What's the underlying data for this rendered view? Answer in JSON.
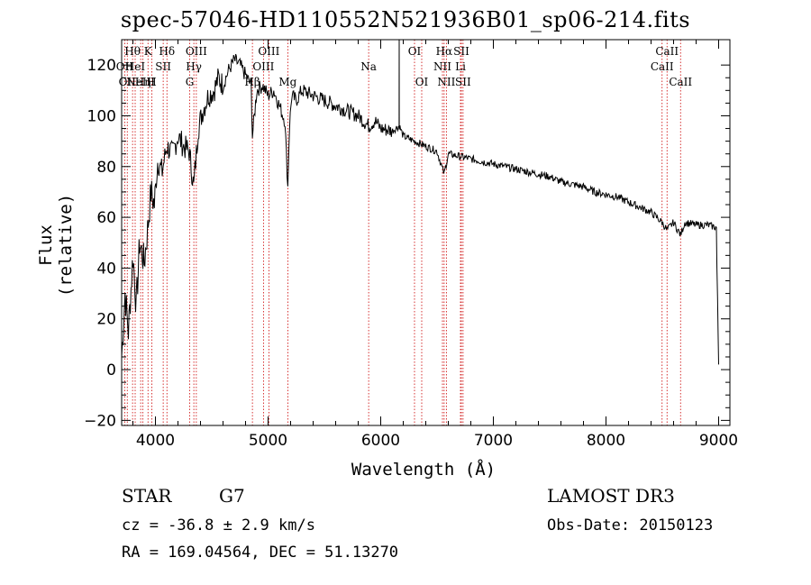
{
  "chart_data": {
    "type": "line",
    "title": "spec-57046-HD110552N521936B01_sp06-214.fits",
    "xlabel": "Wavelength (Å)",
    "ylabel": "Flux (relative)",
    "xlim": [
      3700,
      9100
    ],
    "ylim": [
      -22,
      130
    ],
    "x_ticks": [
      4000,
      5000,
      6000,
      7000,
      8000,
      9000
    ],
    "y_ticks": [
      -20,
      0,
      20,
      40,
      60,
      80,
      100,
      120
    ],
    "series": [
      {
        "name": "flux",
        "x": [
          3700,
          3730,
          3760,
          3800,
          3830,
          3860,
          3900,
          3930,
          3960,
          3990,
          4020,
          4060,
          4100,
          4150,
          4200,
          4250,
          4300,
          4340,
          4380,
          4420,
          4470,
          4520,
          4560,
          4600,
          4650,
          4700,
          4750,
          4800,
          4850,
          4861,
          4900,
          4950,
          5000,
          5050,
          5100,
          5150,
          5175,
          5190,
          5210,
          5250,
          5300,
          5400,
          5500,
          5600,
          5700,
          5800,
          5893,
          5950,
          6000,
          6100,
          6163,
          6164,
          6165,
          6200,
          6300,
          6400,
          6500,
          6563,
          6600,
          6700,
          6800,
          6900,
          7000,
          7100,
          7200,
          7300,
          7400,
          7500,
          7600,
          7700,
          7800,
          7900,
          8000,
          8100,
          8200,
          8300,
          8400,
          8498,
          8542,
          8600,
          8662,
          8700,
          8800,
          8900,
          8980,
          8985,
          9000
        ],
        "y": [
          5,
          30,
          15,
          45,
          25,
          50,
          42,
          55,
          70,
          65,
          82,
          78,
          88,
          85,
          92,
          88,
          86,
          72,
          95,
          102,
          108,
          110,
          115,
          112,
          118,
          122,
          120,
          116,
          112,
          92,
          110,
          112,
          108,
          110,
          104,
          98,
          72,
          96,
          108,
          106,
          110,
          108,
          106,
          104,
          102,
          100,
          96,
          98,
          95,
          94,
          96,
          130,
          96,
          92,
          90,
          88,
          86,
          77,
          85,
          84,
          83,
          82,
          81,
          80,
          79,
          78,
          77,
          76,
          74,
          73,
          72,
          70,
          69,
          68,
          66,
          64,
          62,
          58,
          55,
          58,
          53,
          58,
          57,
          57,
          56,
          40,
          2
        ]
      }
    ],
    "line_markers": [
      {
        "wavelength": 3727,
        "label": "OII",
        "row": 2
      },
      {
        "wavelength": 3750,
        "label": "OII",
        "row": 3
      },
      {
        "wavelength": 3797,
        "label": "Hθ",
        "row": 1
      },
      {
        "wavelength": 3820,
        "label": "HeI",
        "row": 2
      },
      {
        "wavelength": 3869,
        "label": "NeIII",
        "row": 3
      },
      {
        "wavelength": 3889,
        "label": "Hη",
        "row": 3
      },
      {
        "wavelength": 3934,
        "label": "K",
        "row": 1
      },
      {
        "wavelength": 3968,
        "label": "H",
        "row": 3
      },
      {
        "wavelength": 4069,
        "label": "SII",
        "row": 2
      },
      {
        "wavelength": 4102,
        "label": "Hδ",
        "row": 1
      },
      {
        "wavelength": 4304,
        "label": "G",
        "row": 3
      },
      {
        "wavelength": 4341,
        "label": "Hγ",
        "row": 2
      },
      {
        "wavelength": 4363,
        "label": "OIII",
        "row": 1
      },
      {
        "wavelength": 4861,
        "label": "Hβ",
        "row": 3
      },
      {
        "wavelength": 4959,
        "label": "OIII",
        "row": 2
      },
      {
        "wavelength": 5007,
        "label": "OIII",
        "row": 1
      },
      {
        "wavelength": 5175,
        "label": "Mg",
        "row": 3
      },
      {
        "wavelength": 5893,
        "label": "Na",
        "row": 2
      },
      {
        "wavelength": 6300,
        "label": "OI",
        "row": 1
      },
      {
        "wavelength": 6364,
        "label": "OI",
        "row": 3
      },
      {
        "wavelength": 6548,
        "label": "NII",
        "row": 2
      },
      {
        "wavelength": 6563,
        "label": "Hα",
        "row": 1
      },
      {
        "wavelength": 6583,
        "label": "NII",
        "row": 3
      },
      {
        "wavelength": 6708,
        "label": "Li",
        "row": 2
      },
      {
        "wavelength": 6716,
        "label": "SII",
        "row": 1
      },
      {
        "wavelength": 6731,
        "label": "SII",
        "row": 3
      },
      {
        "wavelength": 8498,
        "label": "CaII",
        "row": 2
      },
      {
        "wavelength": 8542,
        "label": "CaII",
        "row": 1
      },
      {
        "wavelength": 8662,
        "label": "CaII",
        "row": 3
      }
    ],
    "colors": {
      "spectrum": "#000000",
      "markers": "#cc0000",
      "axes": "#000000"
    }
  },
  "info": {
    "object_class": "STAR",
    "subclass": "G7",
    "survey": "LAMOST DR3",
    "redshift": "cz = -36.8 ± 2.9 km/s",
    "obs_date": "Obs-Date: 20150123",
    "coords": "RA = 169.04564, DEC =  51.13270"
  }
}
